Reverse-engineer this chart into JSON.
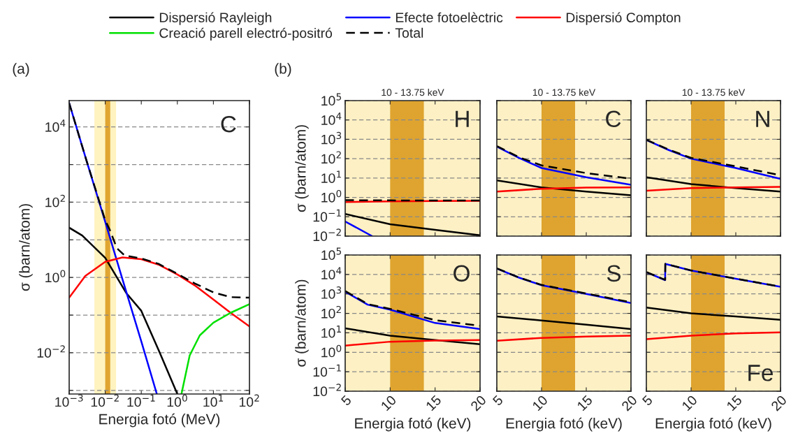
{
  "chart_data": [
    {
      "type": "line",
      "log": "xy",
      "xlabel": "Energia fotó (MeV)",
      "ylabel": "σ (barn/atom)",
      "annotations": [
        "(a)",
        "C"
      ],
      "legend": "top",
      "grid": "y",
      "xlim": [
        0.001,
        100
      ],
      "ylim": [
        0.0008,
        50000
      ],
      "xticks": [
        {
          "value": 0.001,
          "label": "10$^{−3}$"
        },
        {
          "value": 0.01,
          "label": "10$^{−2}$"
        },
        {
          "value": 0.1,
          "label": "10$^{−1}$"
        },
        {
          "value": 1,
          "label": "10$^{0}$"
        },
        {
          "value": 10,
          "label": "10$^{1}$"
        },
        {
          "value": 100,
          "label": "10$^{2}$"
        }
      ],
      "yticks": [
        {
          "value": 0.001,
          "label": null
        },
        {
          "value": 0.01,
          "label": "10$^{−2}$"
        },
        {
          "value": 0.1,
          "label": null
        },
        {
          "value": 1,
          "label": "10$^{0}$"
        },
        {
          "value": 10,
          "label": null
        },
        {
          "value": 100,
          "label": "10$^{2}$"
        },
        {
          "value": 1000,
          "label": null
        },
        {
          "value": 10000,
          "label": "10$^{4}$"
        }
      ],
      "bands": [
        {
          "axis": "x",
          "from": 0.005,
          "to": 0.02,
          "color": "#fff3c0"
        },
        {
          "axis": "x",
          "from": 0.01,
          "to": 0.01375,
          "color": "#e0a530"
        }
      ],
      "series": [
        {
          "name": "Dispersió Rayleigh",
          "color": "#000000",
          "line_style": "solid",
          "x": [
            0.001,
            0.0023,
            0.01,
            0.038,
            0.1,
            0.3,
            1.0
          ],
          "values": [
            21,
            13,
            3.3,
            0.39,
            0.13,
            0.012,
            0.0008
          ]
        },
        {
          "name": "Efecte fotoelèctric",
          "color": "#0000ff",
          "line_style": "solid",
          "x": [
            0.001,
            0.003,
            0.01,
            0.03,
            0.1,
            0.27
          ],
          "values": [
            43000,
            1300,
            30,
            0.9,
            0.02,
            0.0008
          ]
        },
        {
          "name": "Dispersió Compton",
          "color": "#ff0000",
          "line_style": "solid",
          "x": [
            0.001,
            0.0028,
            0.01,
            0.03,
            0.1,
            0.3,
            1,
            3,
            10,
            30,
            100
          ],
          "values": [
            0.29,
            1.1,
            2.6,
            3.4,
            3.05,
            2.2,
            1.2,
            0.62,
            0.26,
            0.115,
            0.05
          ]
        },
        {
          "name": "Creació parell electró-positró",
          "color": "#00e000",
          "line_style": "solid",
          "x": [
            1.3,
            2.2,
            4.2,
            10,
            30,
            100
          ],
          "values": [
            0.0008,
            0.0085,
            0.029,
            0.063,
            0.115,
            0.195
          ]
        },
        {
          "name": "Total",
          "color": "#000000",
          "line_style": "dashed",
          "x": [
            0.001,
            0.003,
            0.01,
            0.0135,
            0.021,
            0.035,
            0.1,
            0.3,
            1,
            3,
            10,
            30,
            100
          ],
          "values": [
            43000,
            1300,
            33,
            18,
            6,
            3.8,
            3.2,
            2.3,
            1.25,
            0.7,
            0.4,
            0.3,
            0.29
          ]
        }
      ]
    },
    {
      "type": "line",
      "log": "y",
      "title": "10 - 13.75 keV",
      "ylabel": "σ (barn/atom)",
      "annotations": [
        "(b)",
        "H"
      ],
      "grid": "y",
      "tick_labels": "y",
      "xlim": [
        5,
        20
      ],
      "ylim": [
        0.01,
        100000
      ],
      "xticks": [
        5,
        10,
        15,
        20
      ],
      "yticks": [
        {
          "value": 0.01,
          "label": "10$^{−2}$"
        },
        {
          "value": 0.1,
          "label": "10$^{−1}$"
        },
        {
          "value": 1,
          "label": "10$^{0}$"
        },
        {
          "value": 10,
          "label": "10$^{1}$"
        },
        {
          "value": 100,
          "label": "10$^{2}$"
        },
        {
          "value": 1000,
          "label": "10$^{3}$"
        },
        {
          "value": 10000,
          "label": "10$^{4}$"
        },
        {
          "value": 100000,
          "label": "10$^{5}$"
        }
      ],
      "bands": [
        {
          "axis": "x",
          "from": 5,
          "to": 20,
          "color": "#fdf0c4"
        },
        {
          "axis": "x",
          "from": 10,
          "to": 13.75,
          "color": "#dfa42f"
        }
      ],
      "series": [
        {
          "color": "#000000",
          "line_style": "solid",
          "x": [
            5,
            10,
            15,
            20
          ],
          "values": [
            0.14,
            0.041,
            0.021,
            0.011
          ]
        },
        {
          "color": "#0000ff",
          "line_style": "solid",
          "x": [
            5,
            8
          ],
          "values": [
            0.057,
            0.01
          ]
        },
        {
          "color": "#ff0000",
          "line_style": "solid",
          "x": [
            5,
            10,
            15,
            20
          ],
          "values": [
            0.58,
            0.63,
            0.65,
            0.66
          ]
        },
        {
          "color": "#000000",
          "line_style": "dashed",
          "x": [
            5,
            10,
            15,
            20
          ],
          "values": [
            0.72,
            0.7,
            0.69,
            0.69
          ]
        }
      ]
    },
    {
      "type": "line",
      "log": "y",
      "title": "10 - 13.75 keV",
      "annotations": [
        "C"
      ],
      "grid": "y",
      "tick_labels": false,
      "xlim": [
        5,
        20
      ],
      "ylim": [
        0.01,
        100000
      ],
      "xticks": [
        5,
        10,
        15,
        20
      ],
      "yticks": [
        0.01,
        0.1,
        1,
        10,
        100,
        1000,
        10000,
        100000
      ],
      "bands": [
        {
          "axis": "x",
          "from": 5,
          "to": 20,
          "color": "#fdf0c4"
        },
        {
          "axis": "x",
          "from": 10,
          "to": 13.75,
          "color": "#dfa42f"
        }
      ],
      "series": [
        {
          "color": "#000000",
          "line_style": "solid",
          "x": [
            5,
            10,
            15,
            20
          ],
          "values": [
            7.5,
            3.3,
            2,
            1.3
          ]
        },
        {
          "color": "#0000ff",
          "line_style": "solid",
          "x": [
            5,
            7.5,
            10,
            15,
            20
          ],
          "values": [
            420,
            108,
            33,
            11,
            4.5
          ]
        },
        {
          "color": "#ff0000",
          "line_style": "solid",
          "x": [
            5,
            10,
            15,
            20
          ],
          "values": [
            2,
            2.8,
            3.2,
            3.3
          ]
        },
        {
          "color": "#000000",
          "line_style": "dashed",
          "x": [
            5,
            7.5,
            10,
            15,
            20
          ],
          "values": [
            450,
            118,
            45,
            18,
            9.3
          ]
        }
      ]
    },
    {
      "type": "line",
      "log": "y",
      "title": "10 - 13.75 keV",
      "annotations": [
        "N"
      ],
      "grid": "y",
      "tick_labels": false,
      "xlim": [
        5,
        20
      ],
      "ylim": [
        0.01,
        100000
      ],
      "xticks": [
        5,
        10,
        15,
        20
      ],
      "yticks": [
        0.01,
        0.1,
        1,
        10,
        100,
        1000,
        10000,
        100000
      ],
      "bands": [
        {
          "axis": "x",
          "from": 5,
          "to": 20,
          "color": "#fdf0c4"
        },
        {
          "axis": "x",
          "from": 10,
          "to": 13.75,
          "color": "#dfa42f"
        }
      ],
      "series": [
        {
          "color": "#000000",
          "line_style": "solid",
          "x": [
            5,
            10,
            15,
            20
          ],
          "values": [
            11,
            4.9,
            3,
            2
          ]
        },
        {
          "color": "#0000ff",
          "line_style": "solid",
          "x": [
            5,
            7.5,
            10,
            15,
            20
          ],
          "values": [
            930,
            280,
            100,
            33,
            9
          ]
        },
        {
          "color": "#ff0000",
          "line_style": "solid",
          "x": [
            5,
            10,
            15,
            20
          ],
          "values": [
            2.2,
            3,
            3.3,
            3.5
          ]
        },
        {
          "color": "#000000",
          "line_style": "dashed",
          "x": [
            5,
            7.5,
            10,
            15,
            20
          ],
          "values": [
            950,
            295,
            110,
            40,
            14
          ]
        }
      ]
    },
    {
      "type": "line",
      "log": "y",
      "xlabel": "Energia fotó (keV)",
      "ylabel": "σ (barn/atom)",
      "annotations": [
        "O"
      ],
      "grid": "y",
      "xlim": [
        5,
        20
      ],
      "ylim": [
        0.01,
        100000
      ],
      "xticks": [
        5,
        10,
        15,
        20
      ],
      "yticks": [
        {
          "value": 0.01,
          "label": "10$^{−2}$"
        },
        {
          "value": 0.1,
          "label": "10$^{−1}$"
        },
        {
          "value": 1,
          "label": "10$^{0}$"
        },
        {
          "value": 10,
          "label": "10$^{1}$"
        },
        {
          "value": 100,
          "label": "10$^{2}$"
        },
        {
          "value": 1000,
          "label": "10$^{3}$"
        },
        {
          "value": 10000,
          "label": "10$^{4}$"
        },
        {
          "value": 100000,
          "label": "10$^{5}$"
        }
      ],
      "bands": [
        {
          "axis": "x",
          "from": 5,
          "to": 20,
          "color": "#fdf0c4"
        },
        {
          "axis": "x",
          "from": 10,
          "to": 13.75,
          "color": "#dfa42f"
        }
      ],
      "series": [
        {
          "color": "#000000",
          "line_style": "solid",
          "x": [
            5,
            10,
            15,
            20
          ],
          "values": [
            17,
            7.2,
            4.3,
            2.6
          ]
        },
        {
          "color": "#0000ff",
          "line_style": "solid",
          "x": [
            5,
            7.5,
            10,
            15,
            20
          ],
          "values": [
            1300,
            280,
            155,
            32,
            15.5
          ]
        },
        {
          "color": "#ff0000",
          "line_style": "solid",
          "x": [
            5,
            10,
            15,
            20
          ],
          "values": [
            2.2,
            3.5,
            4,
            4.3
          ]
        },
        {
          "color": "#000000",
          "line_style": "dashed",
          "x": [
            5,
            7.5,
            10,
            15,
            20
          ],
          "values": [
            1400,
            300,
            170,
            45,
            23
          ]
        }
      ]
    },
    {
      "type": "line",
      "log": "y",
      "xlabel": "Energia fotó (keV)",
      "annotations": [
        "S"
      ],
      "grid": "y",
      "tick_labels": "x",
      "xlim": [
        5,
        20
      ],
      "ylim": [
        0.01,
        100000
      ],
      "xticks": [
        5,
        10,
        15,
        20
      ],
      "yticks": [
        0.01,
        0.1,
        1,
        10,
        100,
        1000,
        10000,
        100000
      ],
      "bands": [
        {
          "axis": "x",
          "from": 5,
          "to": 20,
          "color": "#fdf0c4"
        },
        {
          "axis": "x",
          "from": 10,
          "to": 13.75,
          "color": "#dfa42f"
        }
      ],
      "series": [
        {
          "color": "#000000",
          "line_style": "solid",
          "x": [
            5,
            10,
            15,
            20
          ],
          "values": [
            70,
            43,
            26,
            15.5
          ]
        },
        {
          "color": "#0000ff",
          "line_style": "solid",
          "x": [
            5,
            7.5,
            10,
            15,
            20
          ],
          "values": [
            20000,
            6800,
            2800,
            1000,
            340
          ]
        },
        {
          "color": "#ff0000",
          "line_style": "solid",
          "x": [
            5,
            10,
            15,
            20
          ],
          "values": [
            3.9,
            5.5,
            6.5,
            7.2
          ]
        },
        {
          "color": "#000000",
          "line_style": "dashed",
          "x": [
            5,
            7.5,
            10,
            15,
            20
          ],
          "values": [
            20500,
            6900,
            2900,
            1050,
            370
          ]
        }
      ]
    },
    {
      "type": "line",
      "log": "y",
      "xlabel": "Energia fotó (keV)",
      "annotations": [
        "Fe"
      ],
      "grid": "y",
      "tick_labels": "x",
      "xlim": [
        5,
        20
      ],
      "ylim": [
        0.01,
        100000
      ],
      "xticks": [
        5,
        10,
        15,
        20
      ],
      "yticks": [
        0.01,
        0.1,
        1,
        10,
        100,
        1000,
        10000,
        100000
      ],
      "bands": [
        {
          "axis": "x",
          "from": 5,
          "to": 20,
          "color": "#fdf0c4"
        },
        {
          "axis": "x",
          "from": 10,
          "to": 13.75,
          "color": "#dfa42f"
        }
      ],
      "series": [
        {
          "color": "#000000",
          "line_style": "solid",
          "x": [
            5,
            10,
            15,
            20
          ],
          "values": [
            200,
            100,
            70,
            47
          ]
        },
        {
          "color": "#0000ff",
          "line_style": "solid",
          "x": [
            5,
            7.1,
            7.12,
            10,
            15,
            20
          ],
          "values": [
            13000,
            5100,
            35000,
            16000,
            6000,
            2300
          ]
        },
        {
          "color": "#ff0000",
          "line_style": "solid",
          "x": [
            5,
            10,
            15,
            20
          ],
          "values": [
            4.7,
            7.2,
            9.3,
            10.5
          ]
        },
        {
          "color": "#000000",
          "line_style": "dashed",
          "x": [
            5,
            7.1,
            7.12,
            10,
            15,
            20
          ],
          "values": [
            13200,
            5300,
            35200,
            16100,
            6080,
            2360
          ]
        }
      ]
    }
  ]
}
